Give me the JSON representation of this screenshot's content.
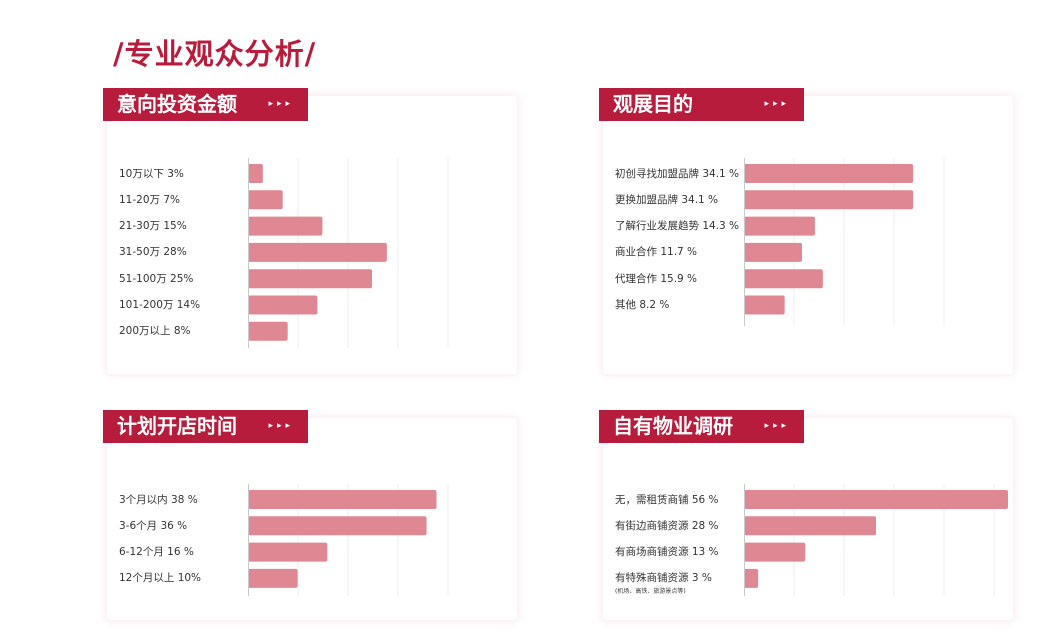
{
  "page": {
    "title": "/专业观众分析/"
  },
  "header_arrows": "▸▸▸",
  "colors": {
    "accent": "#b81c3c",
    "bar": "#df8894",
    "axis": "#c9c9c9",
    "grid": "#eeeeee"
  },
  "chart_data": [
    {
      "id": "investment",
      "type": "bar",
      "orientation": "horizontal",
      "title": "意向投资金额",
      "categories": [
        "10万以下 3%",
        "11-20万 7%",
        "21-30万 15%",
        "31-50万 28%",
        "51-100万 25%",
        "101-200万 14%",
        "200万以上 8%"
      ],
      "values": [
        3,
        7,
        15,
        28,
        25,
        14,
        8
      ],
      "xlim": [
        0,
        50
      ],
      "grid": true
    },
    {
      "id": "purpose",
      "type": "bar",
      "orientation": "horizontal",
      "title": "观展目的",
      "categories": [
        "初创寻找加盟品牌 34.1 %",
        "更换加盟品牌 34.1 %",
        "了解行业发展趋势 14.3 %",
        "商业合作 11.7 %",
        "代理合作 15.9 %",
        "其他 8.2 %"
      ],
      "values": [
        34.1,
        34.1,
        14.3,
        11.7,
        15.9,
        8.2
      ],
      "xlim": [
        0,
        50
      ],
      "grid": true
    },
    {
      "id": "opening",
      "type": "bar",
      "orientation": "horizontal",
      "title": "计划开店时间",
      "categories": [
        "3个月以内 38 %",
        "3-6个月 36 %",
        "6-12个月 16 %",
        "12个月以上 10%"
      ],
      "values": [
        38,
        36,
        16,
        10
      ],
      "xlim": [
        0,
        50
      ],
      "grid": true
    },
    {
      "id": "property",
      "type": "bar",
      "orientation": "horizontal",
      "title": "自有物业调研",
      "categories": [
        "无，需租赁商铺 56 %",
        "有街边商铺资源 28 %",
        "有商场商铺资源 13 %",
        "有特殊商铺资源 3 %"
      ],
      "values": [
        56,
        28,
        13,
        3
      ],
      "xlim": [
        0,
        56
      ],
      "grid": true,
      "note": "(机场、高铁、旅游景点等)"
    }
  ]
}
